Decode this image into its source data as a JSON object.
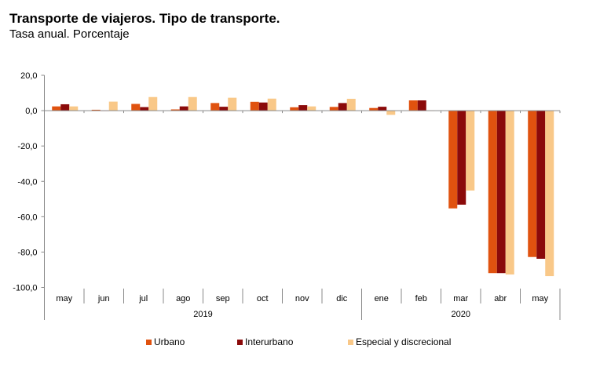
{
  "header": {
    "title": "Transporte de viajeros. Tipo de transporte.",
    "subtitle": "Tasa anual. Porcentaje"
  },
  "chart_data": {
    "type": "bar",
    "title": "Transporte de viajeros. Tipo de transporte.",
    "subtitle": "Tasa anual. Porcentaje",
    "xlabel": "",
    "ylabel": "",
    "ylim": [
      -100,
      20
    ],
    "yticks": [
      20,
      0,
      -20,
      -40,
      -60,
      -80,
      -100
    ],
    "ytick_labels": [
      "20,0",
      "0,0",
      "-20,0",
      "-40,0",
      "-60,0",
      "-80,0",
      "-100,0"
    ],
    "categories": [
      "may",
      "jun",
      "jul",
      "ago",
      "sep",
      "oct",
      "nov",
      "dic",
      "ene",
      "feb",
      "mar",
      "abr",
      "may"
    ],
    "groups": [
      {
        "label": "2019",
        "count": 8
      },
      {
        "label": "2020",
        "count": 5
      }
    ],
    "series": [
      {
        "name": "Urbano",
        "color": "#E0520F",
        "values": [
          2.4,
          0.5,
          3.8,
          0.7,
          4.3,
          5.0,
          1.9,
          2.1,
          1.5,
          5.8,
          -55.3,
          -91.9,
          -82.8
        ]
      },
      {
        "name": "Interurbano",
        "color": "#8B0A0A",
        "values": [
          3.6,
          0.0,
          2.0,
          2.4,
          2.2,
          4.6,
          3.1,
          4.3,
          2.2,
          5.8,
          -53.2,
          -91.9,
          -83.8
        ]
      },
      {
        "name": "Especial y discrecional",
        "color": "#F9C888",
        "values": [
          2.4,
          5.1,
          7.7,
          7.7,
          7.3,
          6.8,
          2.4,
          6.7,
          -2.4,
          0.0,
          -45.2,
          -92.7,
          -93.6
        ]
      }
    ],
    "grid": false,
    "legend_position": "bottom"
  }
}
